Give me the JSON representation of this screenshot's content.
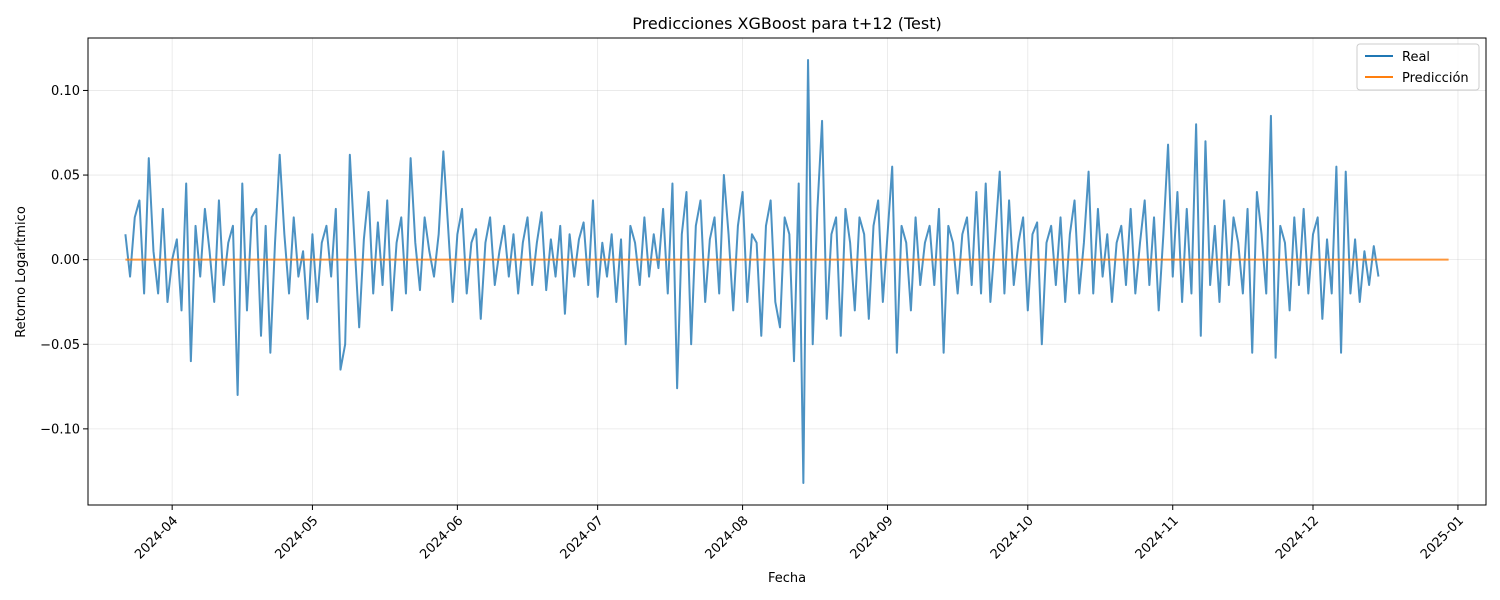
{
  "chart_data": {
    "type": "line",
    "title": "Predicciones XGBoost para t+12 (Test)",
    "xlabel": "Fecha",
    "ylabel": "Retorno Logarítmico",
    "x_range": [
      "2024-03-14",
      "2025-01-07"
    ],
    "ylim": [
      -0.145,
      0.131
    ],
    "grid": true,
    "legend_position": "top-right",
    "x_ticks": [
      "2024-04",
      "2024-05",
      "2024-06",
      "2024-07",
      "2024-08",
      "2024-09",
      "2024-10",
      "2024-11",
      "2024-12",
      "2025-01"
    ],
    "y_ticks": [
      {
        "value": 0.1,
        "label": "0.10"
      },
      {
        "value": 0.05,
        "label": "0.05"
      },
      {
        "value": 0.0,
        "label": "0.00"
      },
      {
        "value": -0.05,
        "label": "−0.05"
      },
      {
        "value": -0.1,
        "label": "−0.10"
      }
    ],
    "series": [
      {
        "name": "Real",
        "color": "#1f77b4",
        "opacity": 0.8,
        "start": "2024-03-22",
        "step_days": 1,
        "values": [
          0.015,
          -0.01,
          0.025,
          0.035,
          -0.02,
          0.06,
          0.005,
          -0.02,
          0.03,
          -0.025,
          0.0,
          0.012,
          -0.03,
          0.045,
          -0.06,
          0.02,
          -0.01,
          0.03,
          0.005,
          -0.025,
          0.035,
          -0.015,
          0.01,
          0.02,
          -0.08,
          0.045,
          -0.03,
          0.025,
          0.03,
          -0.045,
          0.02,
          -0.055,
          0.01,
          0.062,
          0.015,
          -0.02,
          0.025,
          -0.01,
          0.005,
          -0.035,
          0.015,
          -0.025,
          0.01,
          0.02,
          -0.01,
          0.03,
          -0.065,
          -0.05,
          0.062,
          0.01,
          -0.04,
          0.012,
          0.04,
          -0.02,
          0.022,
          -0.015,
          0.035,
          -0.03,
          0.01,
          0.025,
          -0.02,
          0.06,
          0.01,
          -0.018,
          0.025,
          0.005,
          -0.01,
          0.015,
          0.064,
          0.02,
          -0.025,
          0.015,
          0.03,
          -0.02,
          0.01,
          0.018,
          -0.035,
          0.01,
          0.025,
          -0.015,
          0.005,
          0.02,
          -0.01,
          0.015,
          -0.02,
          0.01,
          0.025,
          -0.015,
          0.01,
          0.028,
          -0.018,
          0.012,
          -0.01,
          0.02,
          -0.032,
          0.015,
          -0.01,
          0.012,
          0.022,
          -0.015,
          0.035,
          -0.022,
          0.01,
          -0.01,
          0.015,
          -0.025,
          0.012,
          -0.05,
          0.02,
          0.01,
          -0.015,
          0.025,
          -0.01,
          0.015,
          -0.005,
          0.03,
          -0.02,
          0.045,
          -0.076,
          0.015,
          0.04,
          -0.05,
          0.02,
          0.035,
          -0.025,
          0.012,
          0.025,
          -0.02,
          0.05,
          0.015,
          -0.03,
          0.02,
          0.04,
          -0.025,
          0.015,
          0.01,
          -0.045,
          0.02,
          0.035,
          -0.025,
          -0.04,
          0.025,
          0.015,
          -0.06,
          0.045,
          -0.132,
          0.118,
          -0.05,
          0.03,
          0.082,
          -0.035,
          0.015,
          0.025,
          -0.045,
          0.03,
          0.01,
          -0.03,
          0.025,
          0.015,
          -0.035,
          0.02,
          0.035,
          -0.025,
          0.015,
          0.055,
          -0.055,
          0.02,
          0.01,
          -0.03,
          0.025,
          -0.015,
          0.01,
          0.02,
          -0.015,
          0.03,
          -0.055,
          0.02,
          0.01,
          -0.02,
          0.015,
          0.025,
          -0.015,
          0.04,
          -0.02,
          0.045,
          -0.025,
          0.012,
          0.052,
          -0.02,
          0.035,
          -0.015,
          0.01,
          0.025,
          -0.03,
          0.015,
          0.022,
          -0.05,
          0.01,
          0.02,
          -0.015,
          0.025,
          -0.025,
          0.015,
          0.035,
          -0.02,
          0.01,
          0.052,
          -0.02,
          0.03,
          -0.01,
          0.015,
          -0.025,
          0.01,
          0.02,
          -0.015,
          0.03,
          -0.02,
          0.01,
          0.035,
          -0.015,
          0.025,
          -0.03,
          0.015,
          0.068,
          -0.01,
          0.04,
          -0.025,
          0.03,
          -0.02,
          0.08,
          -0.045,
          0.07,
          -0.015,
          0.02,
          -0.025,
          0.035,
          -0.015,
          0.025,
          0.01,
          -0.02,
          0.03,
          -0.055,
          0.04,
          0.015,
          -0.02,
          0.085,
          -0.058,
          0.02,
          0.01,
          -0.03,
          0.025,
          -0.015,
          0.03,
          -0.02,
          0.015,
          0.025,
          -0.035,
          0.012,
          -0.02,
          0.055,
          -0.055,
          0.052,
          -0.02,
          0.012,
          -0.025,
          0.005,
          -0.015,
          0.008,
          -0.01
        ]
      },
      {
        "name": "Predicción",
        "color": "#ff7f0e",
        "opacity": 0.8,
        "start": "2024-03-22",
        "end": "2024-12-30",
        "constant_value": 0.0
      }
    ]
  }
}
